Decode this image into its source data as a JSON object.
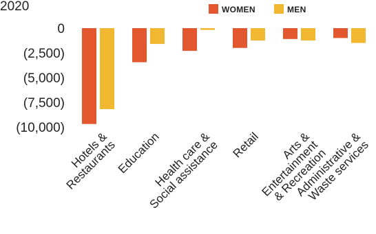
{
  "chart_data": {
    "type": "bar",
    "year_label": "2020",
    "categories": [
      [
        "Hotels &",
        "Restaurants"
      ],
      [
        "Education"
      ],
      [
        "Health care &",
        "Social assistance"
      ],
      [
        "Retail"
      ],
      [
        "Arts &",
        "Entertainment",
        "& Recreation"
      ],
      [
        "Administrative &",
        "Waste services"
      ]
    ],
    "series": [
      {
        "name": "WOMEN",
        "color": "#e2572e",
        "values": [
          -9700,
          -3450,
          -2300,
          -2000,
          -1100,
          -1000
        ]
      },
      {
        "name": "MEN",
        "color": "#f2b731",
        "values": [
          -8200,
          -1600,
          -180,
          -1250,
          -1250,
          -1500
        ]
      }
    ],
    "ylim": [
      -10000,
      0
    ],
    "yticks": [
      {
        "value": 0,
        "label": "0"
      },
      {
        "value": -2500,
        "label": "(2,500)"
      },
      {
        "value": -5000,
        "label": "(5,000)"
      },
      {
        "value": -7500,
        "label": "(7,500)"
      },
      {
        "value": -10000,
        "label": "(10,000)"
      }
    ],
    "grid": false,
    "legend_position": "top-right"
  }
}
